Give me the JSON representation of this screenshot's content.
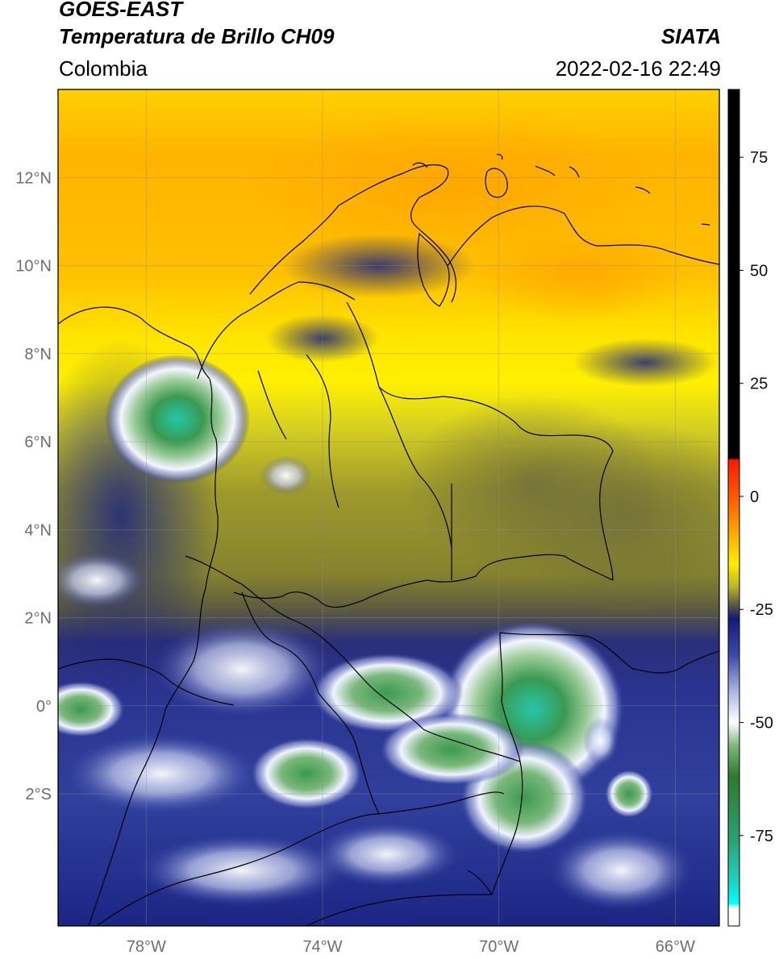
{
  "header": {
    "satellite": "GOES-EAST",
    "product": "Temperatura de Brillo CH09",
    "agency": "SIATA",
    "region": "Colombia",
    "datetime": "2022-02-16 22:49"
  },
  "map": {
    "lon_range": [
      -80,
      -65
    ],
    "lat_range": [
      -5,
      14
    ],
    "lat_ticks": [
      {
        "value": 12,
        "label": "12°N"
      },
      {
        "value": 10,
        "label": "10°N"
      },
      {
        "value": 8,
        "label": "8°N"
      },
      {
        "value": 6,
        "label": "6°N"
      },
      {
        "value": 4,
        "label": "4°N"
      },
      {
        "value": 2,
        "label": "2°N"
      },
      {
        "value": 0,
        "label": "0°"
      },
      {
        "value": -2,
        "label": "2°S"
      }
    ],
    "lon_ticks": [
      {
        "value": -78,
        "label": "78°W"
      },
      {
        "value": -74,
        "label": "74°W"
      },
      {
        "value": -70,
        "label": "70°W"
      },
      {
        "value": -66,
        "label": "66°W"
      }
    ],
    "gridlines": true,
    "colors": {
      "warm_orange": "#ffb000",
      "yellow": "#ffe800",
      "olive": "#8a8a2a",
      "dark_olive": "#55553c",
      "navy": "#1a237e",
      "white": "#f4f6ff",
      "green": "#3f9a4a",
      "teal": "#2fc8a8",
      "border": "#000000"
    }
  },
  "colorbar": {
    "range": [
      -95,
      90
    ],
    "ticks": [
      75,
      50,
      25,
      0,
      -25,
      -50,
      -75
    ],
    "tick_labels": [
      "75",
      "50",
      "25",
      "0",
      "-25",
      "-50",
      "-75"
    ],
    "stops": [
      {
        "value": 90,
        "color": "#000000"
      },
      {
        "value": 8.5,
        "color": "#000000"
      },
      {
        "value": 8,
        "color": "#ff1a00"
      },
      {
        "value": 0,
        "color": "#ff5a00"
      },
      {
        "value": -8,
        "color": "#ffa800"
      },
      {
        "value": -15,
        "color": "#ffee00"
      },
      {
        "value": -20,
        "color": "#b9b428"
      },
      {
        "value": -24,
        "color": "#5a5a46"
      },
      {
        "value": -27,
        "color": "#111a7a"
      },
      {
        "value": -35,
        "color": "#3a4aa8"
      },
      {
        "value": -43,
        "color": "#aab4e0"
      },
      {
        "value": -50,
        "color": "#ffffff"
      },
      {
        "value": -55,
        "color": "#7fb87f"
      },
      {
        "value": -62,
        "color": "#2e7a2e"
      },
      {
        "value": -75,
        "color": "#2a9e6e"
      },
      {
        "value": -85,
        "color": "#20d0c0"
      },
      {
        "value": -90,
        "color": "#00ffff"
      },
      {
        "value": -91,
        "color": "#ffffff"
      },
      {
        "value": -95,
        "color": "#ffffff"
      }
    ]
  }
}
